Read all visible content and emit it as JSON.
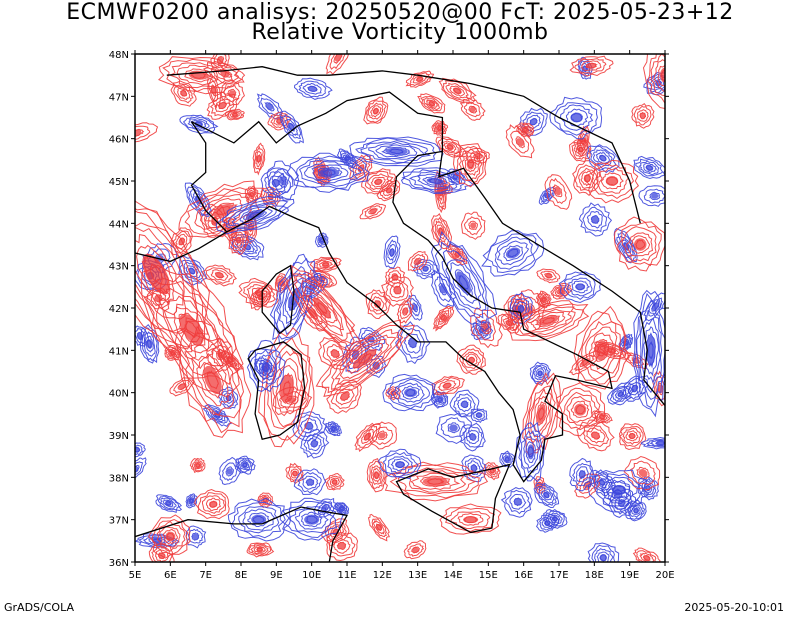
{
  "header": {
    "title_line1": "ECMWF0200 analisys: 20250520@00 FcT: 2025-05-23+12",
    "title_line2": "Relative Vorticity 1000mb"
  },
  "footer": {
    "left": "GrADS/COLA",
    "right": "2025-05-20-10:01"
  },
  "map": {
    "lon_range": [
      5,
      20
    ],
    "lat_range": [
      36,
      48
    ],
    "lon_labels": [
      "5E",
      "6E",
      "7E",
      "8E",
      "9E",
      "10E",
      "11E",
      "12E",
      "13E",
      "14E",
      "15E",
      "16E",
      "17E",
      "18E",
      "19E",
      "20E"
    ],
    "lat_labels": [
      "36N",
      "37N",
      "38N",
      "39N",
      "40N",
      "41N",
      "42N",
      "43N",
      "44N",
      "45N",
      "46N",
      "47N",
      "48N"
    ],
    "colors": {
      "positive_contour": "#f03c3c",
      "negative_contour": "#3c46dc",
      "coastline": "#000000"
    }
  }
}
